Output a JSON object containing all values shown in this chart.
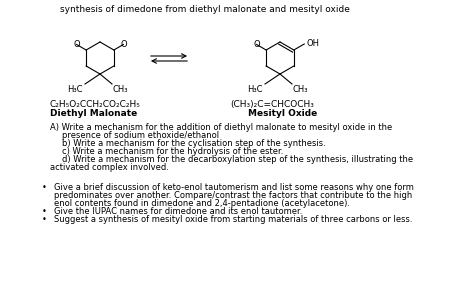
{
  "title_line": "synthesis of dimedone from diethyl malonate and mesityl oxide",
  "formula1_line1": "C₂H₅O₂CCH₂CO₂C₂H₅",
  "formula1_line2": "Diethyl Malonate",
  "formula2_line1": "(CH₃)₂C=CHCOCH₃",
  "formula2_line2": "Mesityl Oxide",
  "bg_color": "#ffffff",
  "text_color": "#000000",
  "fontsize_title": 6.5,
  "fontsize_body": 6.0,
  "fontsize_formula": 6.5,
  "fontsize_struct": 6.0
}
